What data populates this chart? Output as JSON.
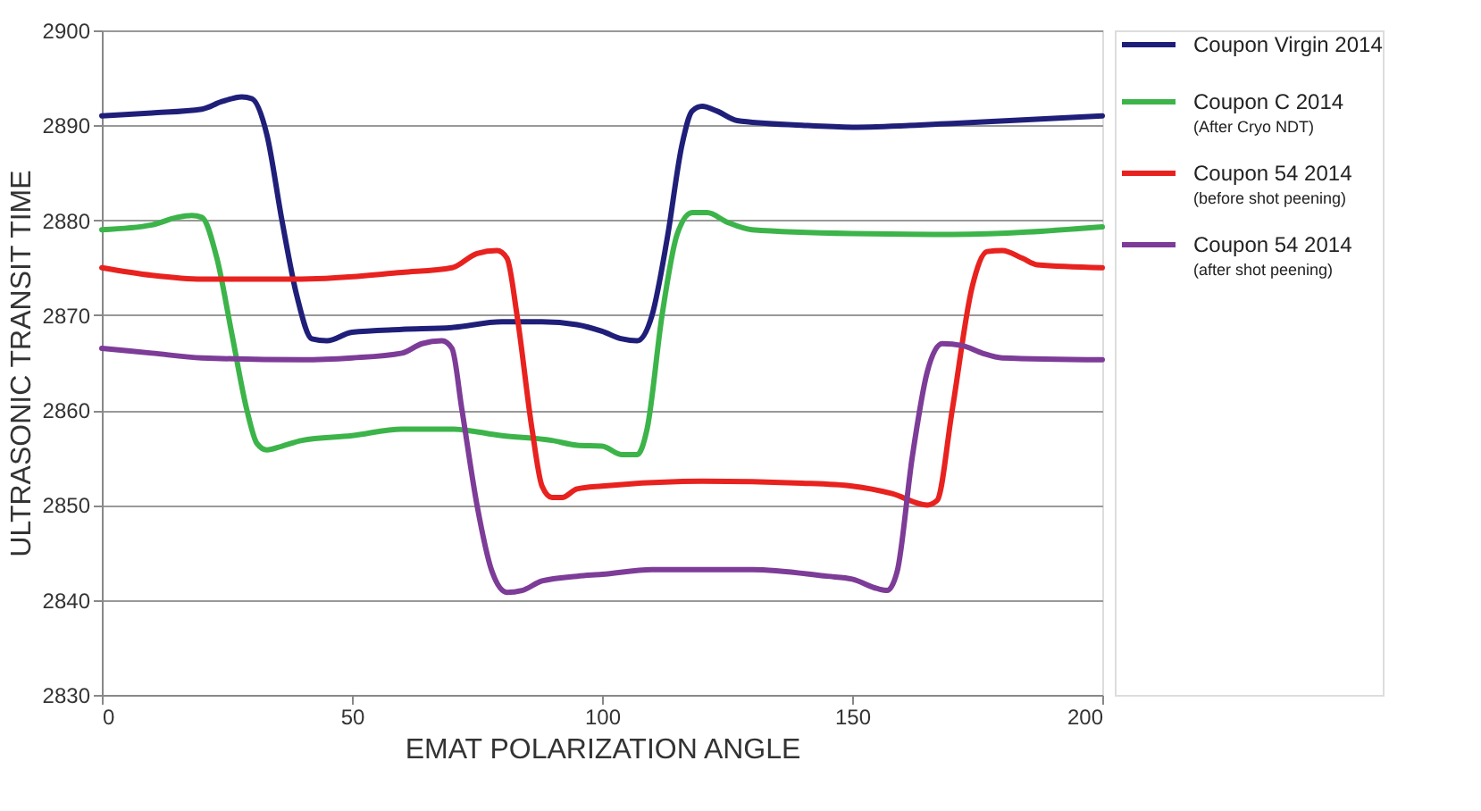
{
  "chart_data": {
    "type": "line",
    "xlabel": "EMAT POLARIZATION ANGLE",
    "ylabel": "ULTRASONIC TRANSIT TIME",
    "xlim": [
      0,
      200
    ],
    "xticks": [
      0,
      50,
      100,
      150,
      200
    ],
    "ylim": [
      2830,
      2900
    ],
    "yticks": [
      2830,
      2840,
      2850,
      2860,
      2870,
      2880,
      2890,
      2900
    ],
    "grid": "y",
    "legend": "right",
    "marker": "none",
    "line_style": "solid",
    "series": [
      {
        "name": "Coupon Virgin 2014",
        "color": "#1f1f7a",
        "x": [
          0,
          10,
          20,
          24,
          28,
          30,
          33,
          36,
          39,
          42,
          45,
          50,
          60,
          70,
          80,
          88,
          95,
          100,
          104,
          107,
          110,
          113,
          116,
          118,
          120,
          123,
          127,
          140,
          150,
          170,
          200
        ],
        "values": [
          2891,
          2891.3,
          2891.7,
          2892.5,
          2893,
          2892.8,
          2889,
          2880,
          2872,
          2867.5,
          2867.3,
          2868.2,
          2868.5,
          2868.7,
          2869.3,
          2869.3,
          2869,
          2868.3,
          2867.5,
          2867.3,
          2870,
          2878,
          2888,
          2891.5,
          2892,
          2891.5,
          2890.5,
          2890,
          2889.8,
          2890.2,
          2891
        ]
      },
      {
        "name": "Coupon C 2014\n(After Cryo NDT)",
        "color": "#3cb44a",
        "x": [
          0,
          10,
          15,
          18,
          20,
          23,
          26,
          29,
          31,
          33,
          36,
          40,
          50,
          60,
          70,
          80,
          90,
          95,
          100,
          104,
          107,
          109,
          112,
          115,
          118,
          121,
          125,
          130,
          150,
          170,
          200
        ],
        "values": [
          2879,
          2879.5,
          2880.3,
          2880.5,
          2880.3,
          2876,
          2868,
          2860,
          2856.5,
          2855.8,
          2856.2,
          2856.8,
          2857.3,
          2858,
          2858,
          2857.3,
          2856.8,
          2856.3,
          2856.2,
          2855.3,
          2855.3,
          2858,
          2870,
          2878.5,
          2880.8,
          2880.8,
          2879.8,
          2879,
          2878.6,
          2878.5,
          2879.3
        ]
      },
      {
        "name": "Coupon 54 2014\n(before shot peening)",
        "color": "#e8221f",
        "x": [
          0,
          10,
          20,
          40,
          60,
          70,
          75,
          79,
          81,
          83,
          86,
          88,
          90,
          92,
          95,
          100,
          120,
          140,
          150,
          158,
          165,
          167,
          170,
          174,
          177,
          180,
          184,
          187,
          200
        ],
        "values": [
          2875,
          2874.2,
          2873.8,
          2873.8,
          2874.5,
          2875,
          2876.5,
          2876.8,
          2876,
          2870,
          2858,
          2852,
          2850.8,
          2850.8,
          2851.7,
          2852,
          2852.5,
          2852.3,
          2852,
          2851.2,
          2850,
          2850.5,
          2860,
          2873,
          2876.7,
          2876.8,
          2876,
          2875.3,
          2875
        ]
      },
      {
        "name": "Coupon 54 2014\n(after shot peening)",
        "color": "#7d3c98",
        "x": [
          0,
          10,
          20,
          40,
          50,
          60,
          64,
          68,
          70,
          72,
          75,
          78,
          81,
          84,
          88,
          95,
          100,
          110,
          130,
          145,
          150,
          155,
          157,
          159,
          162,
          165,
          168,
          172,
          176,
          180,
          200
        ],
        "values": [
          2866.5,
          2866,
          2865.5,
          2865.3,
          2865.5,
          2866,
          2867,
          2867.3,
          2866.5,
          2860,
          2850,
          2843,
          2840.8,
          2841,
          2842,
          2842.5,
          2842.7,
          2843.2,
          2843.2,
          2842.5,
          2842.2,
          2841.2,
          2841,
          2843,
          2855,
          2864,
          2867,
          2866.8,
          2866,
          2865.5,
          2865.3
        ]
      }
    ]
  }
}
